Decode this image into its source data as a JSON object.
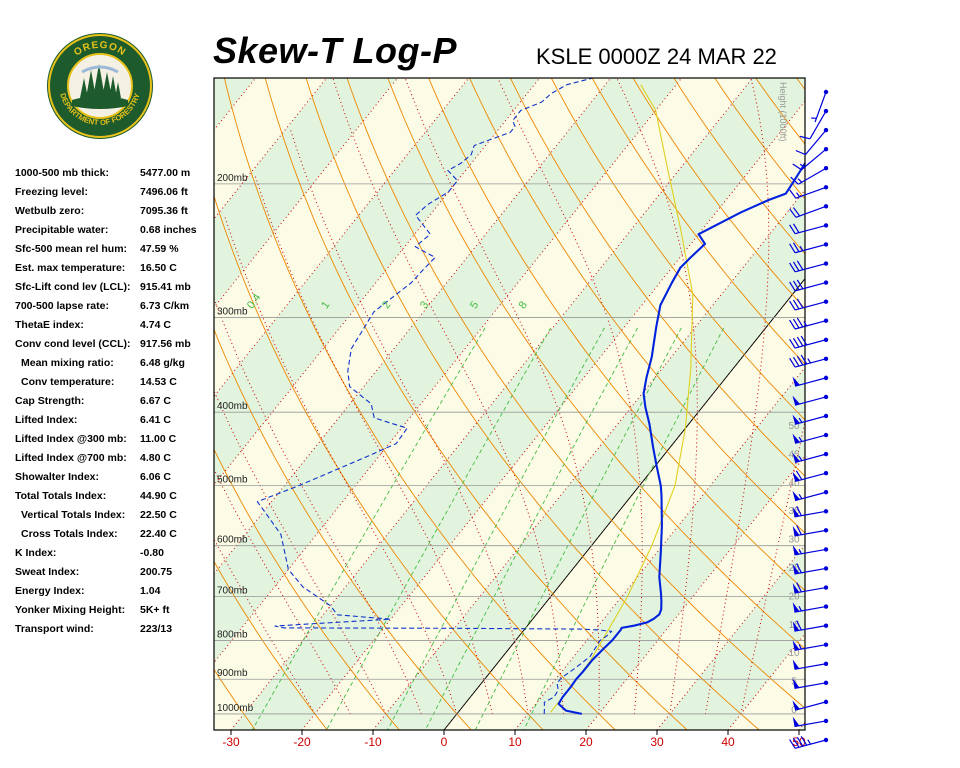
{
  "header": {
    "title": "Skew-T Log-P",
    "station_line": "KSLE 0000Z 24 MAR 22"
  },
  "logo": {
    "top_text": "OREGON",
    "bottom_text": "DEPARTMENT OF FORESTRY"
  },
  "indices": [
    {
      "label": "1000-500 mb thick:",
      "value": "5477.00 m"
    },
    {
      "label": "Freezing level:",
      "value": "7496.06 ft"
    },
    {
      "label": "Wetbulb zero:",
      "value": "7095.36 ft"
    },
    {
      "label": "Precipitable water:",
      "value": "0.68 inches"
    },
    {
      "label": "Sfc-500 mean rel hum:",
      "value": "47.59 %"
    },
    {
      "label": "Est. max temperature:",
      "value": "16.50 C"
    },
    {
      "label": "Sfc-Lift cond lev (LCL):",
      "value": "915.41 mb"
    },
    {
      "label": "700-500 lapse rate:",
      "value": "6.73 C/km"
    },
    {
      "label": "ThetaE index:",
      "value": "4.74 C"
    },
    {
      "label": "Conv cond level (CCL):",
      "value": "917.56 mb"
    },
    {
      "label": "Mean mixing ratio:",
      "value": "6.48 g/kg",
      "indent": true
    },
    {
      "label": "Conv temperature:",
      "value": "14.53 C",
      "indent": true
    },
    {
      "label": "Cap Strength:",
      "value": "6.67 C"
    },
    {
      "label": "Lifted Index:",
      "value": "6.41 C"
    },
    {
      "label": "Lifted Index @300 mb:",
      "value": "11.00 C"
    },
    {
      "label": "Lifted Index @700 mb:",
      "value": "4.80 C"
    },
    {
      "label": "Showalter Index:",
      "value": "6.06 C"
    },
    {
      "label": "Total Totals Index:",
      "value": "44.90 C"
    },
    {
      "label": "Vertical Totals Index:",
      "value": "22.50 C",
      "indent": true
    },
    {
      "label": "Cross Totals Index:",
      "value": "22.40 C",
      "indent": true
    },
    {
      "label": "K Index:",
      "value": "-0.80"
    },
    {
      "label": "Sweat Index:",
      "value": "200.75"
    },
    {
      "label": "Energy Index:",
      "value": "1.04"
    },
    {
      "label": "Yonker Mixing Height:",
      "value": "5K+ ft"
    },
    {
      "label": "Transport wind:",
      "value": "223/13"
    }
  ],
  "chart_data": {
    "type": "line",
    "title": "Skew-T Log-P",
    "subtitle": "KSLE 0000Z 24 MAR 22",
    "x_ticks": [
      -30,
      -20,
      -10,
      0,
      10,
      20,
      30,
      40,
      50
    ],
    "xlim": [
      -30,
      50
    ],
    "pressure_labels": [
      "200mb",
      "300mb",
      "400mb",
      "500mb",
      "600mb",
      "700mb",
      "800mb",
      "900mb",
      "1000mb"
    ],
    "pressure_levels": [
      200,
      300,
      400,
      500,
      600,
      700,
      800,
      900,
      1000
    ],
    "height_axis_label": "Height (1000ft)",
    "height_ticks": [
      "0",
      "5",
      "10",
      "15",
      "20",
      "25",
      "30",
      "35",
      "40",
      "45",
      "50"
    ],
    "mixing_ratio_labels": [
      "0.4",
      "1",
      "2",
      "3",
      "5",
      "8"
    ],
    "colors": {
      "temperature": "#0022dd",
      "dewpoint": "#1133cc",
      "parcel": "#e0d020",
      "isotherm": "#cc0000",
      "dry_adiabat": "#ee8800",
      "moist_adiabat": "#cc0000",
      "mixing_ratio": "#44bb44",
      "wind_barb": "#0000dd",
      "axis_tick": "#cc0000"
    },
    "series": [
      {
        "name": "temperature",
        "points": [
          [
            17.6,
            1000
          ],
          [
            15.0,
            990
          ],
          [
            13.2,
            970
          ],
          [
            13.0,
            950
          ],
          [
            13.0,
            920
          ],
          [
            12.9,
            900
          ],
          [
            13.0,
            880
          ],
          [
            13.0,
            850
          ],
          [
            13.3,
            820
          ],
          [
            13.6,
            800
          ],
          [
            13.6,
            790
          ],
          [
            13.6,
            775
          ],
          [
            13.5,
            770
          ],
          [
            15.0,
            765
          ],
          [
            16.5,
            757
          ],
          [
            17.0,
            749
          ],
          [
            17.3,
            739
          ],
          [
            17.0,
            728
          ],
          [
            16.1,
            710
          ],
          [
            15.2,
            694
          ],
          [
            13.1,
            660
          ],
          [
            10.5,
            612
          ],
          [
            7.7,
            565
          ],
          [
            4.2,
            515
          ],
          [
            3.0,
            500
          ],
          [
            0.1,
            470
          ],
          [
            -2.4,
            445
          ],
          [
            -5.5,
            415
          ],
          [
            -8.0,
            394
          ],
          [
            -9.8,
            378
          ],
          [
            -11.2,
            360
          ],
          [
            -12.8,
            338
          ],
          [
            -15.5,
            309
          ],
          [
            -17.4,
            289
          ],
          [
            -18.3,
            270
          ],
          [
            -18.8,
            258
          ],
          [
            -18.5,
            250
          ],
          [
            -18.0,
            240
          ],
          [
            -20.0,
            233
          ],
          [
            -16.5,
            218
          ],
          [
            -14.0,
            210
          ],
          [
            -12.3,
            206
          ],
          [
            -12.5,
            200
          ],
          [
            -13.0,
            188
          ],
          [
            -13.5,
            175
          ],
          [
            -11.8,
            165
          ],
          [
            -10.5,
            160
          ],
          [
            -9.0,
            155
          ],
          [
            -8.2,
            150
          ],
          [
            -8.6,
            145
          ]
        ]
      },
      {
        "name": "dewpoint",
        "points": [
          [
            12.3,
            1000
          ],
          [
            11.6,
            980
          ],
          [
            11.0,
            965
          ],
          [
            11.8,
            950
          ],
          [
            11.6,
            930
          ],
          [
            10.6,
            910
          ],
          [
            10.7,
            895
          ],
          [
            11.5,
            870
          ],
          [
            12.3,
            840
          ],
          [
            11.9,
            800
          ],
          [
            12.3,
            790
          ],
          [
            12.5,
            778
          ],
          [
            10.5,
            775
          ],
          [
            8.0,
            773
          ],
          [
            -10.0,
            771
          ],
          [
            -34.0,
            770
          ],
          [
            -35.5,
            766
          ],
          [
            -32.0,
            762
          ],
          [
            -20.0,
            750
          ],
          [
            -28.0,
            740
          ],
          [
            -30.0,
            720
          ],
          [
            -36.0,
            680
          ],
          [
            -40.0,
            645
          ],
          [
            -45.0,
            580
          ],
          [
            -50.0,
            540
          ],
          [
            -52.0,
            525
          ],
          [
            -48.0,
            500
          ],
          [
            -42.0,
            460
          ],
          [
            -39.0,
            440
          ],
          [
            -39.2,
            420
          ],
          [
            -45.0,
            407
          ],
          [
            -47.0,
            390
          ],
          [
            -52.0,
            370
          ],
          [
            -54.0,
            353
          ],
          [
            -56.0,
            330
          ],
          [
            -57.0,
            295
          ],
          [
            -55.0,
            270
          ],
          [
            -54.8,
            260
          ],
          [
            -54.5,
            250
          ],
          [
            -58.5,
            242
          ],
          [
            -57.8,
            233
          ],
          [
            -62.0,
            220
          ],
          [
            -61.5,
            213
          ],
          [
            -60.0,
            205
          ],
          [
            -60.0,
            198
          ],
          [
            -62.5,
            192
          ],
          [
            -61.5,
            188
          ],
          [
            -61.0,
            183
          ],
          [
            -61.6,
            178
          ],
          [
            -58.0,
            171
          ],
          [
            -58.0,
            168
          ],
          [
            -59.0,
            165
          ],
          [
            -59.0,
            160
          ],
          [
            -57.0,
            156
          ],
          [
            -56.6,
            152
          ],
          [
            -55.4,
            148
          ],
          [
            -52.5,
            145
          ]
        ]
      },
      {
        "name": "parcel",
        "points": [
          [
            13.0,
            995
          ],
          [
            13.0,
            900
          ],
          [
            12.8,
            850
          ],
          [
            12.2,
            800
          ],
          [
            10.8,
            700
          ],
          [
            8.5,
            600
          ],
          [
            5.0,
            500
          ],
          [
            0.0,
            420
          ],
          [
            -6.0,
            350
          ],
          [
            -14.0,
            280
          ],
          [
            -23.0,
            230
          ],
          [
            -32.0,
            190
          ],
          [
            -40.0,
            160
          ],
          [
            -45.0,
            148
          ]
        ]
      }
    ],
    "wind_barbs": [
      {
        "dir": 200,
        "kt": 5
      },
      {
        "dir": 210,
        "kt": 10
      },
      {
        "dir": 220,
        "kt": 10
      },
      {
        "dir": 230,
        "kt": 15
      },
      {
        "dir": 240,
        "kt": 15
      },
      {
        "dir": 250,
        "kt": 15
      },
      {
        "dir": 250,
        "kt": 20
      },
      {
        "dir": 255,
        "kt": 20
      },
      {
        "dir": 255,
        "kt": 25
      },
      {
        "dir": 255,
        "kt": 30
      },
      {
        "dir": 255,
        "kt": 30
      },
      {
        "dir": 255,
        "kt": 30
      },
      {
        "dir": 255,
        "kt": 35
      },
      {
        "dir": 255,
        "kt": 40
      },
      {
        "dir": 255,
        "kt": 45
      },
      {
        "dir": 255,
        "kt": 50
      },
      {
        "dir": 255,
        "kt": 50
      },
      {
        "dir": 255,
        "kt": 55
      },
      {
        "dir": 255,
        "kt": 55
      },
      {
        "dir": 255,
        "kt": 55
      },
      {
        "dir": 255,
        "kt": 60
      },
      {
        "dir": 255,
        "kt": 55
      },
      {
        "dir": 260,
        "kt": 60
      },
      {
        "dir": 260,
        "kt": 60
      },
      {
        "dir": 260,
        "kt": 55
      },
      {
        "dir": 260,
        "kt": 60
      },
      {
        "dir": 260,
        "kt": 60
      },
      {
        "dir": 260,
        "kt": 55
      },
      {
        "dir": 260,
        "kt": 60
      },
      {
        "dir": 260,
        "kt": 55
      },
      {
        "dir": 260,
        "kt": 50
      },
      {
        "dir": 260,
        "kt": 50
      },
      {
        "dir": 255,
        "kt": 50
      },
      {
        "dir": 260,
        "kt": 50
      },
      {
        "dir": 255,
        "kt": 45
      }
    ]
  }
}
